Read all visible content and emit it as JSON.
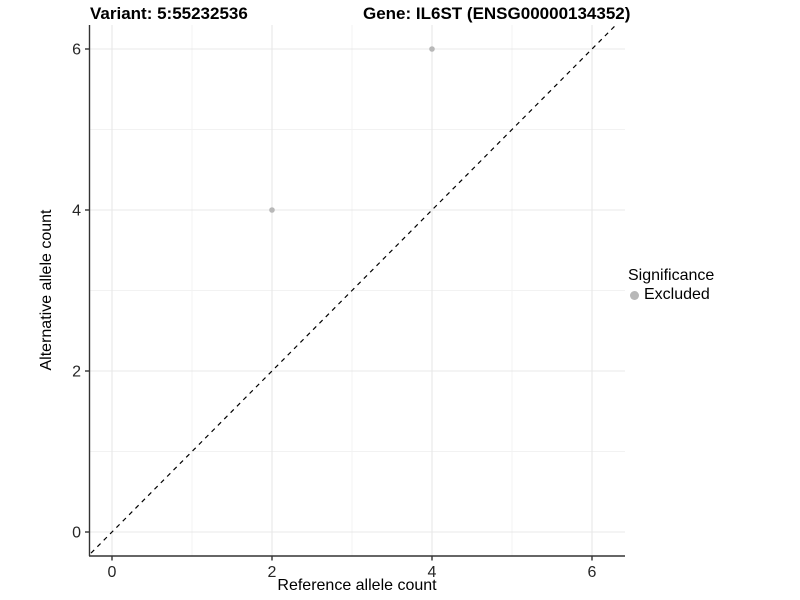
{
  "titles": {
    "variant": "Variant: 5:55232536",
    "gene": "Gene: IL6ST (ENSG00000134352)"
  },
  "axes": {
    "x": {
      "label": "Reference allele count",
      "ticks": [
        "0",
        "2",
        "4",
        "6"
      ]
    },
    "y": {
      "label": "Alternative allele count",
      "ticks": [
        "0",
        "2",
        "4",
        "6"
      ]
    }
  },
  "legend": {
    "title": "Significance",
    "items": [
      {
        "label": "Excluded",
        "color": "#b8b8b8"
      }
    ]
  },
  "colors": {
    "point": "#b8b8b8",
    "grid_major": "#e8e8e8",
    "grid_minor": "#f2f2f2",
    "axis_line": "#333333",
    "tick_text": "#262626",
    "identity_line": "#000000"
  },
  "chart_data": {
    "type": "scatter",
    "title": "Variant: 5:55232536 | Gene: IL6ST (ENSG00000134352)",
    "xlabel": "Reference allele count",
    "ylabel": "Alternative allele count",
    "xlim": [
      -0.3,
      6.4
    ],
    "ylim": [
      -0.3,
      6.3
    ],
    "x_ticks": [
      0,
      2,
      4,
      6
    ],
    "y_ticks": [
      0,
      2,
      4,
      6
    ],
    "grid": true,
    "legend_position": "right",
    "legend_title": "Significance",
    "series": [
      {
        "name": "Excluded",
        "color": "#b8b8b8",
        "points": [
          {
            "x": 2,
            "y": 4
          },
          {
            "x": 4,
            "y": 6
          }
        ]
      }
    ],
    "reference_line": {
      "type": "identity y=x",
      "style": "dashed",
      "color": "#000000"
    }
  }
}
